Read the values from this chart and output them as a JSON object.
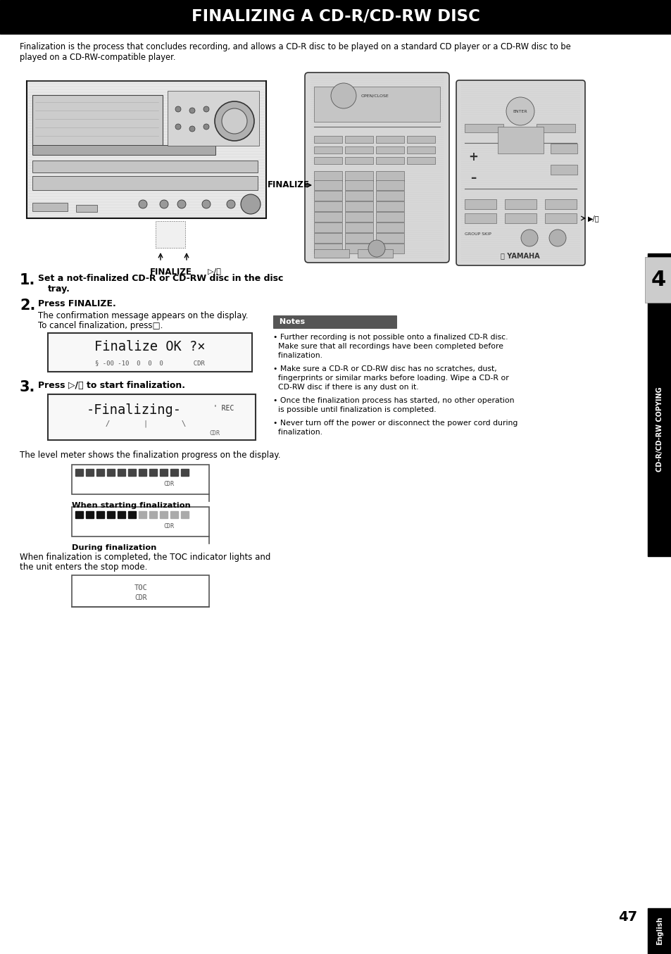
{
  "title": "FINALIZING A CD-R/CD-RW DISC",
  "title_bg": "#000000",
  "title_color": "#ffffff",
  "page_bg": "#ffffff",
  "intro_line1": "Finalization is the process that concludes recording, and allows a CD-R disc to be played on a standard CD player or a CD-RW disc to be",
  "intro_line2": "played on a CD-RW-compatible player.",
  "step1_bold": "1.",
  "step1_text_a": "Set a not-finalized CD-R or CD-RW disc in the disc",
  "step1_text_b": "tray.",
  "step2_bold": "2.",
  "step2_text": "Press FINALIZE.",
  "step2_sub1": "The confirmation message appears on the display.",
  "step2_sub2": "To cancel finalization, press□.",
  "finalize_ok_line1": "Finalize OK ?×",
  "finalize_ok_line2": "§ -00 -10  0  0  0        CDR",
  "step3_bold": "3.",
  "step3_text": "Press ▷/⏮ to start finalization.",
  "finalizing_line1": "-Finalizing-",
  "finalizing_rec": "' REC",
  "finalizing_line2": "     /       |       \\",
  "finalizing_sub": "CDR",
  "level_text": "The level meter shows the finalization progress on the display.",
  "when_starting_label": "When starting finalization",
  "during_label": "During finalization",
  "completion_line1": "When finalization is completed, the TOC indicator lights and",
  "completion_line2": "the unit enters the stop mode.",
  "notes_title": "Notes",
  "note1_line1": "• Further recording is not possible onto a finalized CD-R disc.",
  "note1_line2": "  Make sure that all recordings have been completed before",
  "note1_line3": "  finalization.",
  "note2_line1": "• Make sure a CD-R or CD-RW disc has no scratches, dust,",
  "note2_line2": "  fingerprints or similar marks before loading. Wipe a CD-R or",
  "note2_line3": "  CD-RW disc if there is any dust on it.",
  "note3_line1": "• Once the finalization process has started, no other operation",
  "note3_line2": "  is possible until finalization is completed.",
  "note4_line1": "• Never turn off the power or disconnect the power cord during",
  "note4_line2": "  finalization.",
  "side_label": "CD-R/CD-RW COPYING",
  "chapter_num": "4",
  "page_num": "47",
  "english_label": "English",
  "finalize_arrow_label": "FINALIZE",
  "finalize_arrow_label2": "▷/⏮",
  "finalize_remote_label": "FINALIZE"
}
